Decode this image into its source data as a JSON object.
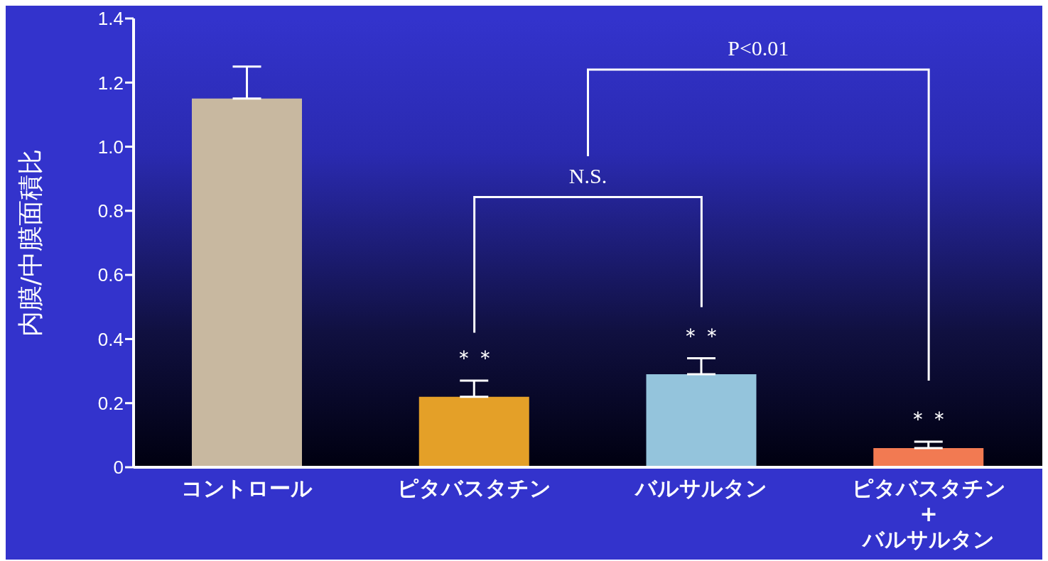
{
  "chart_data": {
    "type": "bar",
    "ylabel": "内膜/中膜面積比",
    "categories": [
      "コントロール",
      "ピタバスタチン",
      "バルサルタン",
      "ピタバスタチン\n+\nバルサルタン"
    ],
    "values": [
      1.15,
      0.22,
      0.29,
      0.06
    ],
    "colors": [
      "#c8b8a0",
      "#e4a028",
      "#94c4dc",
      "#f27a52"
    ],
    "errors": [
      [
        1.15,
        1.25
      ],
      [
        0.22,
        0.27
      ],
      [
        0.29,
        0.34
      ],
      [
        0.06,
        0.08
      ]
    ],
    "ylim": [
      0,
      1.4
    ],
    "yticks": [
      0,
      0.2,
      0.4,
      0.6,
      0.8,
      {
        "value": 1,
        "label": "1.0"
      },
      1.2,
      1.4
    ],
    "annotations": [
      "N.S.",
      "P<0.01",
      "＊＊",
      "＊＊",
      "＊＊"
    ]
  }
}
